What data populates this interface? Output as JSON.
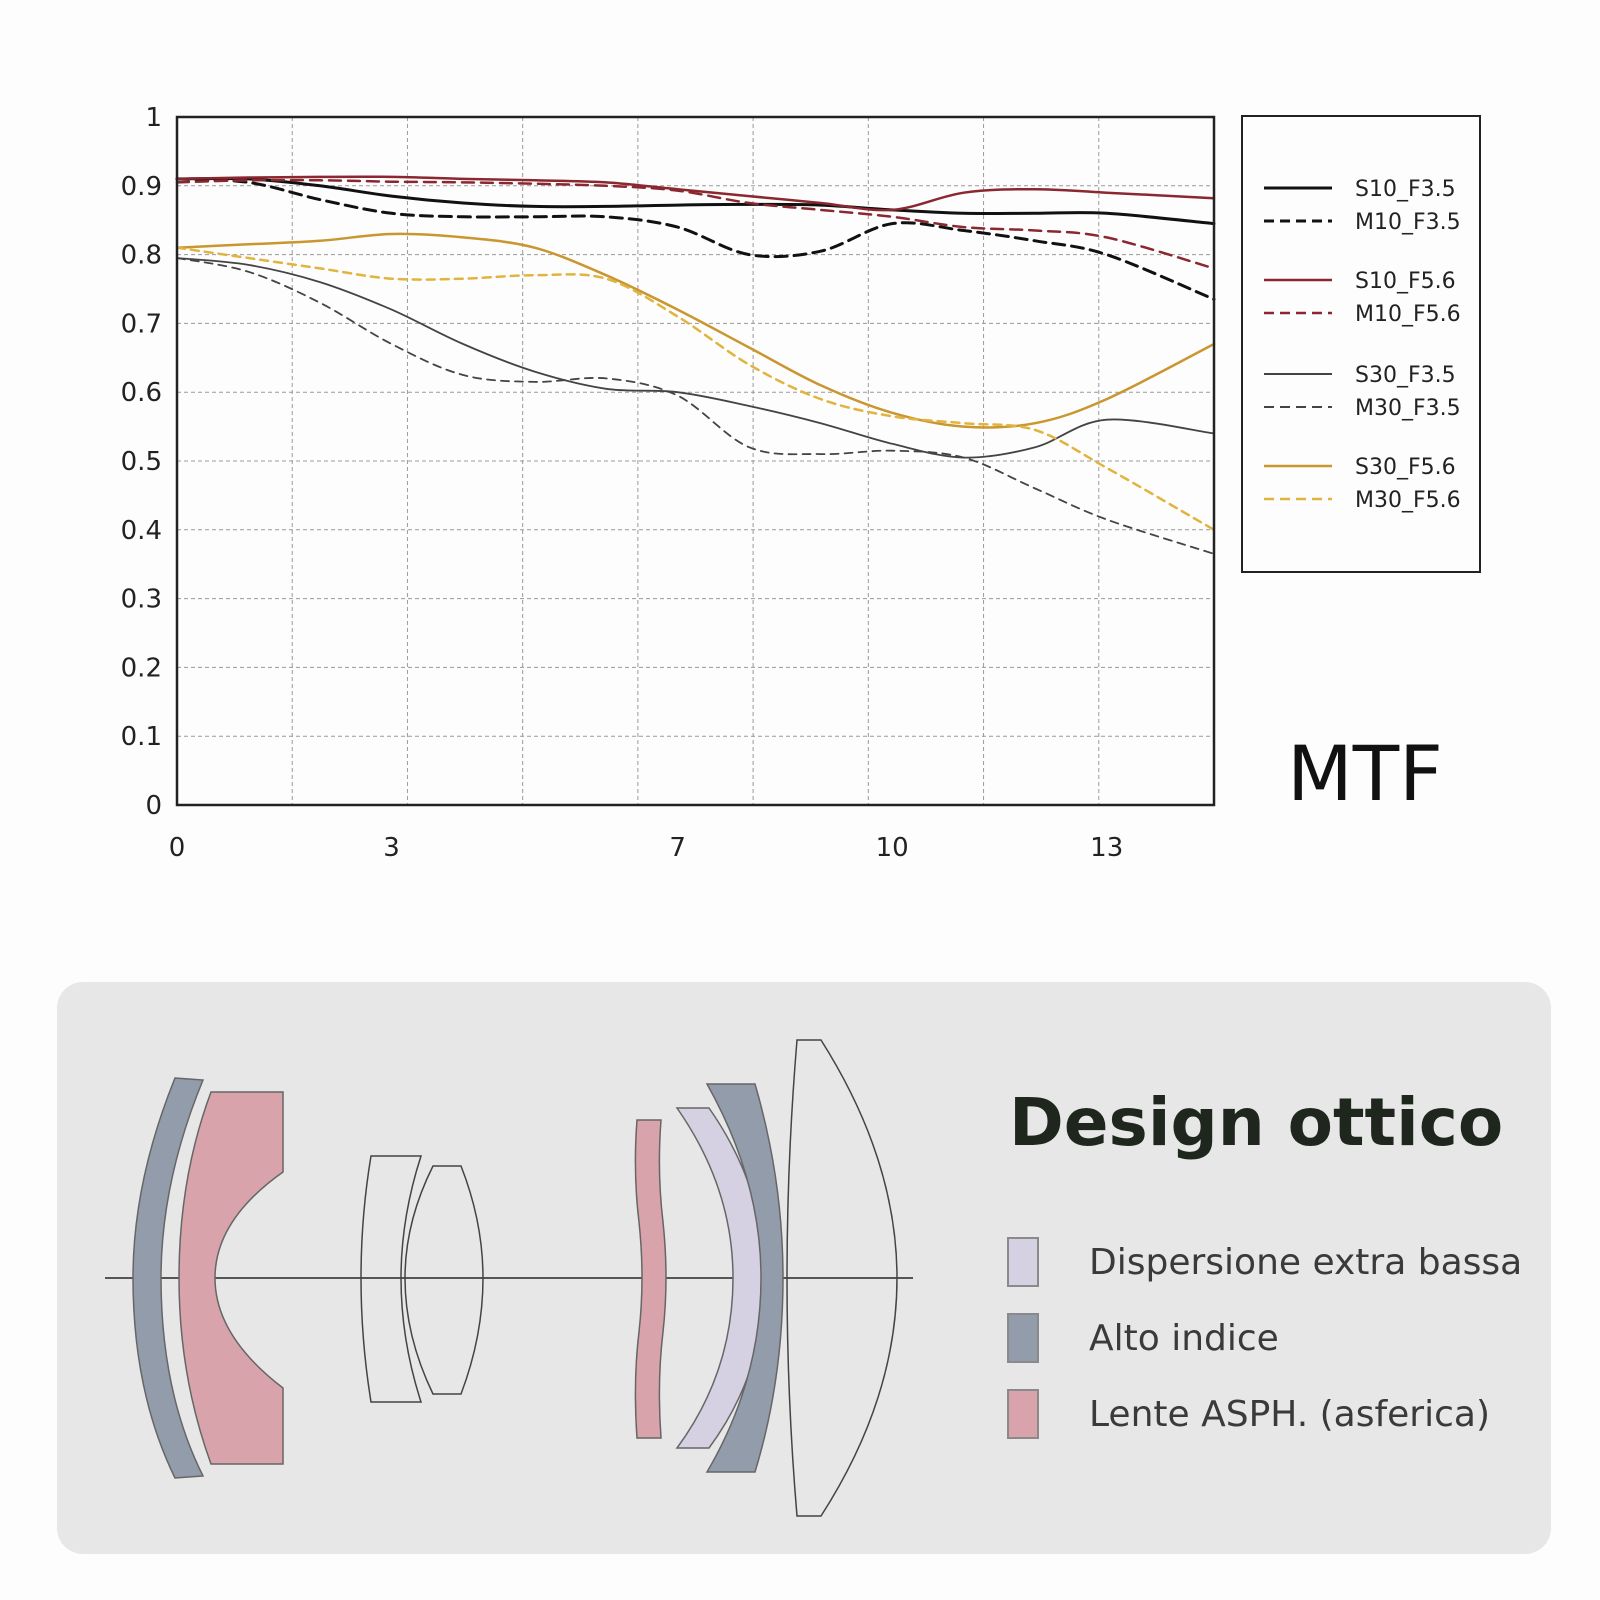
{
  "chart_data": {
    "type": "line",
    "title": "MTF",
    "xlabel": "",
    "ylabel": "",
    "xlim": [
      0,
      14.5
    ],
    "ylim": [
      0,
      1
    ],
    "grid": true,
    "legend_position": "right",
    "x_ticks": [
      "0",
      "3",
      "7",
      "10",
      "13"
    ],
    "x_tick_values": [
      0,
      3,
      7,
      10,
      13
    ],
    "y_ticks": [
      "0",
      "0.1",
      "0.2",
      "0.3",
      "0.4",
      "0.5",
      "0.6",
      "0.7",
      "0.8",
      "0.9",
      "1"
    ],
    "y_tick_values": [
      0,
      0.1,
      0.2,
      0.3,
      0.4,
      0.5,
      0.6,
      0.7,
      0.8,
      0.9,
      1
    ],
    "x": [
      0,
      1,
      2,
      3,
      4,
      5,
      6,
      7,
      8,
      9,
      10,
      11,
      12,
      13,
      14.5
    ],
    "series": [
      {
        "name": "S10_F3.5",
        "color": "#111111",
        "dash": false,
        "width": 3,
        "values": [
          0.91,
          0.91,
          0.9,
          0.885,
          0.875,
          0.87,
          0.87,
          0.872,
          0.873,
          0.872,
          0.865,
          0.86,
          0.86,
          0.86,
          0.845
        ]
      },
      {
        "name": "M10_F3.5",
        "color": "#111111",
        "dash": true,
        "width": 3,
        "values": [
          0.91,
          0.905,
          0.88,
          0.86,
          0.855,
          0.855,
          0.855,
          0.84,
          0.8,
          0.805,
          0.845,
          0.835,
          0.82,
          0.8,
          0.735
        ]
      },
      {
        "name": "S10_F5.6",
        "color": "#8b2730",
        "dash": false,
        "width": 2.5,
        "values": [
          0.91,
          0.912,
          0.913,
          0.913,
          0.91,
          0.908,
          0.905,
          0.895,
          0.885,
          0.875,
          0.865,
          0.89,
          0.895,
          0.89,
          0.882
        ]
      },
      {
        "name": "M10_F5.6",
        "color": "#8b2730",
        "dash": true,
        "width": 2.5,
        "values": [
          0.905,
          0.908,
          0.908,
          0.906,
          0.905,
          0.903,
          0.9,
          0.893,
          0.875,
          0.865,
          0.855,
          0.84,
          0.835,
          0.825,
          0.78
        ]
      },
      {
        "name": "S30_F3.5",
        "color": "#444444",
        "dash": false,
        "width": 1.8,
        "values": [
          0.795,
          0.785,
          0.76,
          0.72,
          0.67,
          0.63,
          0.605,
          0.6,
          0.58,
          0.555,
          0.525,
          0.505,
          0.52,
          0.56,
          0.54
        ]
      },
      {
        "name": "M30_F3.5",
        "color": "#444444",
        "dash": true,
        "width": 1.8,
        "values": [
          0.795,
          0.775,
          0.73,
          0.67,
          0.625,
          0.615,
          0.62,
          0.595,
          0.52,
          0.51,
          0.515,
          0.505,
          0.46,
          0.415,
          0.365
        ]
      },
      {
        "name": "S30_F5.6",
        "color": "#c9962f",
        "dash": false,
        "width": 2.5,
        "values": [
          0.81,
          0.815,
          0.82,
          0.83,
          0.825,
          0.81,
          0.77,
          0.72,
          0.665,
          0.61,
          0.57,
          0.55,
          0.555,
          0.59,
          0.67
        ]
      },
      {
        "name": "M30_F5.6",
        "color": "#e0b43e",
        "dash": true,
        "width": 2.5,
        "values": [
          0.81,
          0.795,
          0.78,
          0.765,
          0.765,
          0.77,
          0.765,
          0.71,
          0.64,
          0.59,
          0.565,
          0.555,
          0.545,
          0.49,
          0.4
        ]
      }
    ]
  },
  "design": {
    "title": "Design ottico",
    "legend": [
      {
        "label": "Dispersione extra bassa",
        "color": "#d6d1e2"
      },
      {
        "label": "Alto indice",
        "color": "#929cab"
      },
      {
        "label": "Lente ASPH. (asferica)",
        "color": "#d8a3ab"
      }
    ]
  }
}
